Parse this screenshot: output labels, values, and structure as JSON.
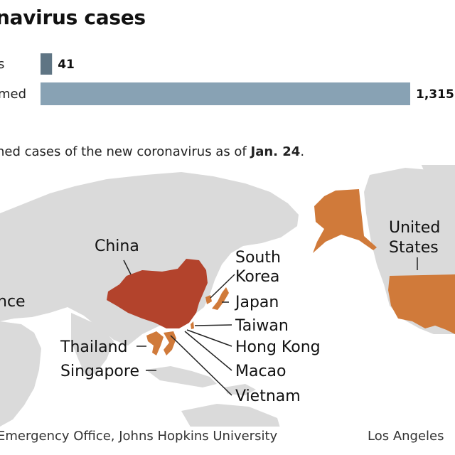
{
  "header": {
    "title": "navirus cases",
    "subtitle_prefix": "ned cases of the new coronavirus as of ",
    "subtitle_date": "Jan. 24",
    "subtitle_suffix": "."
  },
  "chart_data": {
    "type": "bar",
    "orientation": "horizontal",
    "categories": [
      "s",
      "med"
    ],
    "values": [
      41,
      1315
    ],
    "value_labels": [
      "41",
      "1,315"
    ],
    "xlim": [
      0,
      1315
    ],
    "grid": false,
    "colors": [
      "#5f7584",
      "#88a2b4"
    ]
  },
  "map": {
    "labels": {
      "china": "China",
      "south_korea_1": "South",
      "south_korea_2": "Korea",
      "japan": "Japan",
      "taiwan": "Taiwan",
      "hong_kong": "Hong Kong",
      "macao": "Macao",
      "vietnam": "Vietnam",
      "thailand": "Thailand",
      "singapore": "Singapore",
      "france_partial": "nce",
      "united_states_1": "United",
      "united_states_2": "States"
    },
    "colors": {
      "china": "#b3432c",
      "confirmed": "#d07a3a",
      "land": "#dadada",
      "water": "#ffffff"
    }
  },
  "footer": {
    "source": "Emergency Office, Johns Hopkins University",
    "credit": "Los Angeles"
  }
}
